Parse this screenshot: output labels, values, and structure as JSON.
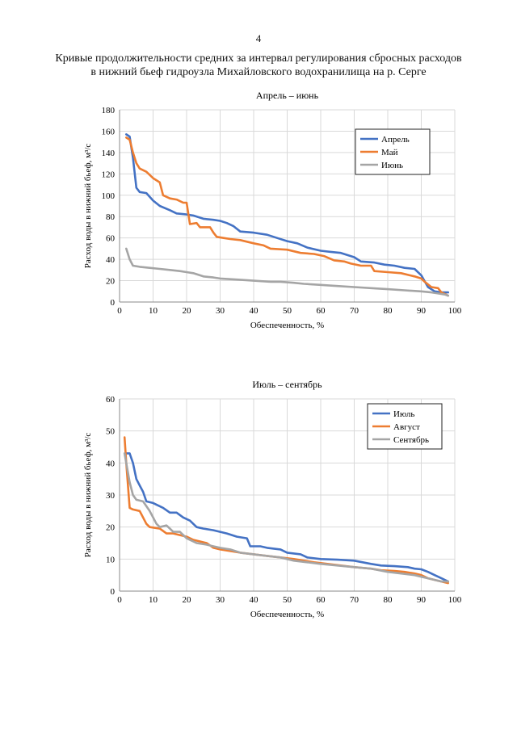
{
  "page": {
    "number": "4",
    "title_line1": "Кривые продолжительности средних за интервал регулирования сбросных расходов",
    "title_line2": "в нижний бьеф гидроузла Михайловского водохранилища на р. Серге"
  },
  "chart_data": [
    {
      "type": "line",
      "title": "Апрель – июнь",
      "xlabel": "Обеспеченность, %",
      "ylabel": "Расход воды в нижний бьеф, м³/с",
      "xlim": [
        0,
        100
      ],
      "ylim": [
        0,
        180
      ],
      "xticks": [
        0,
        10,
        20,
        30,
        40,
        50,
        60,
        70,
        80,
        90,
        100
      ],
      "yticks": [
        0,
        20,
        40,
        60,
        80,
        100,
        120,
        140,
        160,
        180
      ],
      "grid": true,
      "legend_position": "top-right",
      "series": [
        {
          "name": "Апрель",
          "color": "#4472c4",
          "points": [
            [
              2,
              157
            ],
            [
              3,
              155
            ],
            [
              4,
              135
            ],
            [
              5,
              107
            ],
            [
              6,
              103
            ],
            [
              8,
              102
            ],
            [
              10,
              95
            ],
            [
              12,
              90
            ],
            [
              15,
              86
            ],
            [
              17,
              83
            ],
            [
              20,
              82
            ],
            [
              22,
              81
            ],
            [
              25,
              78
            ],
            [
              28,
              77
            ],
            [
              30,
              76
            ],
            [
              32,
              74
            ],
            [
              34,
              71
            ],
            [
              36,
              66
            ],
            [
              40,
              65
            ],
            [
              44,
              63
            ],
            [
              47,
              60
            ],
            [
              50,
              57
            ],
            [
              53,
              55
            ],
            [
              56,
              51
            ],
            [
              60,
              48
            ],
            [
              63,
              47
            ],
            [
              66,
              46
            ],
            [
              70,
              42
            ],
            [
              72,
              38
            ],
            [
              76,
              37
            ],
            [
              79,
              35
            ],
            [
              82,
              34
            ],
            [
              85,
              32
            ],
            [
              88,
              31
            ],
            [
              90,
              25
            ],
            [
              92,
              14
            ],
            [
              94,
              10
            ],
            [
              96,
              9
            ],
            [
              98,
              9
            ]
          ]
        },
        {
          "name": "Май",
          "color": "#ed7d31",
          "points": [
            [
              2,
              154
            ],
            [
              3,
              152
            ],
            [
              4,
              140
            ],
            [
              5,
              130
            ],
            [
              6,
              125
            ],
            [
              8,
              122
            ],
            [
              10,
              116
            ],
            [
              12,
              112
            ],
            [
              13,
              100
            ],
            [
              15,
              97
            ],
            [
              17,
              96
            ],
            [
              19,
              93
            ],
            [
              20,
              93
            ],
            [
              21,
              73
            ],
            [
              23,
              74
            ],
            [
              24,
              70
            ],
            [
              27,
              70
            ],
            [
              28,
              65
            ],
            [
              29,
              61
            ],
            [
              31,
              60
            ],
            [
              33,
              59
            ],
            [
              36,
              58
            ],
            [
              40,
              55
            ],
            [
              43,
              53
            ],
            [
              45,
              50
            ],
            [
              50,
              49
            ],
            [
              54,
              46
            ],
            [
              58,
              45
            ],
            [
              61,
              43
            ],
            [
              64,
              39
            ],
            [
              67,
              38
            ],
            [
              69,
              36
            ],
            [
              72,
              34
            ],
            [
              75,
              34
            ],
            [
              76,
              29
            ],
            [
              80,
              28
            ],
            [
              84,
              27
            ],
            [
              88,
              24
            ],
            [
              90,
              22
            ],
            [
              91,
              19
            ],
            [
              93,
              14
            ],
            [
              95,
              13
            ],
            [
              96,
              9
            ],
            [
              98,
              6
            ]
          ]
        },
        {
          "name": "Июнь",
          "color": "#a5a5a5",
          "points": [
            [
              2,
              50
            ],
            [
              3,
              40
            ],
            [
              4,
              34
            ],
            [
              6,
              33
            ],
            [
              9,
              32
            ],
            [
              12,
              31
            ],
            [
              15,
              30
            ],
            [
              18,
              29
            ],
            [
              20,
              28
            ],
            [
              22,
              27
            ],
            [
              25,
              24
            ],
            [
              28,
              23
            ],
            [
              30,
              22
            ],
            [
              35,
              21
            ],
            [
              40,
              20
            ],
            [
              45,
              19
            ],
            [
              48,
              19
            ],
            [
              52,
              18
            ],
            [
              55,
              17
            ],
            [
              60,
              16
            ],
            [
              65,
              15
            ],
            [
              70,
              14
            ],
            [
              75,
              13
            ],
            [
              80,
              12
            ],
            [
              85,
              11
            ],
            [
              90,
              10
            ],
            [
              93,
              9
            ],
            [
              95,
              8
            ],
            [
              97,
              7
            ],
            [
              98,
              6
            ]
          ]
        }
      ]
    },
    {
      "type": "line",
      "title": "Июль – сентябрь",
      "xlabel": "Обеспеченность, %",
      "ylabel": "Расход воды в нижний бьеф, м³/с",
      "xlim": [
        0,
        100
      ],
      "ylim": [
        0,
        60
      ],
      "xticks": [
        0,
        10,
        20,
        30,
        40,
        50,
        60,
        70,
        80,
        90,
        100
      ],
      "yticks": [
        0,
        10,
        20,
        30,
        40,
        50,
        60
      ],
      "grid": true,
      "legend_position": "top-right",
      "series": [
        {
          "name": "Июль",
          "color": "#4472c4",
          "points": [
            [
              2,
              43
            ],
            [
              3,
              43
            ],
            [
              4,
              40
            ],
            [
              5,
              35
            ],
            [
              6,
              33
            ],
            [
              7,
              31
            ],
            [
              8,
              28
            ],
            [
              10,
              27.5
            ],
            [
              12,
              26.5
            ],
            [
              13,
              26
            ],
            [
              15,
              24.5
            ],
            [
              17,
              24.5
            ],
            [
              19,
              23
            ],
            [
              21,
              22
            ],
            [
              23,
              20
            ],
            [
              25,
              19.5
            ],
            [
              28,
              19
            ],
            [
              30,
              18.5
            ],
            [
              32,
              18
            ],
            [
              35,
              17
            ],
            [
              38,
              16.5
            ],
            [
              39,
              14
            ],
            [
              42,
              14
            ],
            [
              44,
              13.5
            ],
            [
              48,
              13
            ],
            [
              50,
              12
            ],
            [
              54,
              11.5
            ],
            [
              56,
              10.5
            ],
            [
              60,
              10
            ],
            [
              65,
              9.8
            ],
            [
              70,
              9.5
            ],
            [
              75,
              8.5
            ],
            [
              78,
              8
            ],
            [
              82,
              7.8
            ],
            [
              86,
              7.5
            ],
            [
              88,
              7
            ],
            [
              90,
              6.8
            ],
            [
              92,
              6
            ],
            [
              94,
              5
            ],
            [
              96,
              4
            ],
            [
              98,
              3
            ]
          ]
        },
        {
          "name": "Август",
          "color": "#ed7d31",
          "points": [
            [
              1.5,
              48
            ],
            [
              2,
              40
            ],
            [
              3,
              26
            ],
            [
              4,
              25.5
            ],
            [
              6,
              25
            ],
            [
              7,
              23
            ],
            [
              8,
              21
            ],
            [
              9,
              20
            ],
            [
              12,
              19.5
            ],
            [
              14,
              18
            ],
            [
              16,
              18
            ],
            [
              18,
              17.5
            ],
            [
              20,
              17
            ],
            [
              22,
              16
            ],
            [
              24,
              15.5
            ],
            [
              26,
              15
            ],
            [
              28,
              13.5
            ],
            [
              30,
              13
            ],
            [
              33,
              12.5
            ],
            [
              36,
              12
            ],
            [
              40,
              11.5
            ],
            [
              44,
              11
            ],
            [
              48,
              10.5
            ],
            [
              52,
              10
            ],
            [
              55,
              9.5
            ],
            [
              58,
              9
            ],
            [
              62,
              8.5
            ],
            [
              66,
              8
            ],
            [
              70,
              7.5
            ],
            [
              75,
              7
            ],
            [
              78,
              6.5
            ],
            [
              82,
              6.3
            ],
            [
              85,
              6
            ],
            [
              88,
              5.5
            ],
            [
              90,
              5
            ],
            [
              92,
              4
            ],
            [
              94,
              3.5
            ],
            [
              96,
              3
            ],
            [
              98,
              2.5
            ]
          ]
        },
        {
          "name": "Сентябрь",
          "color": "#a5a5a5",
          "points": [
            [
              1.5,
              43
            ],
            [
              2,
              40
            ],
            [
              3,
              34
            ],
            [
              4,
              30
            ],
            [
              5,
              28.5
            ],
            [
              7,
              28
            ],
            [
              9,
              25
            ],
            [
              11,
              21
            ],
            [
              12,
              20
            ],
            [
              14,
              20.5
            ],
            [
              15,
              19.5
            ],
            [
              16,
              18.5
            ],
            [
              18,
              18.5
            ],
            [
              20,
              16.5
            ],
            [
              23,
              15
            ],
            [
              26,
              14.5
            ],
            [
              28,
              14
            ],
            [
              30,
              13.5
            ],
            [
              33,
              13
            ],
            [
              36,
              12
            ],
            [
              40,
              11.5
            ],
            [
              44,
              11
            ],
            [
              48,
              10.5
            ],
            [
              52,
              9.5
            ],
            [
              56,
              9
            ],
            [
              60,
              8.5
            ],
            [
              65,
              8
            ],
            [
              70,
              7.5
            ],
            [
              75,
              7
            ],
            [
              80,
              6
            ],
            [
              84,
              5.5
            ],
            [
              88,
              5
            ],
            [
              90,
              4.5
            ],
            [
              92,
              4
            ],
            [
              94,
              3.5
            ],
            [
              96,
              3
            ],
            [
              98,
              3
            ]
          ]
        }
      ]
    }
  ]
}
